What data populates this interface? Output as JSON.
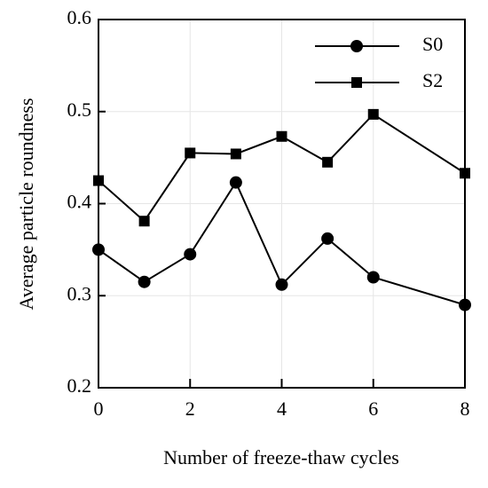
{
  "chart_data": {
    "type": "line",
    "x_label": "Number of freeze-thaw cycles",
    "y_label": "Average particle roundness",
    "x": [
      0,
      1,
      2,
      3,
      4,
      5,
      6,
      8
    ],
    "series": [
      {
        "name": "S0",
        "color": "#000000",
        "marker": "circle",
        "values": [
          0.35,
          0.315,
          0.345,
          0.423,
          0.312,
          0.362,
          0.32,
          0.29
        ]
      },
      {
        "name": "S2",
        "color": "#000000",
        "marker": "square",
        "values": [
          0.425,
          0.381,
          0.455,
          0.454,
          0.473,
          0.445,
          0.497,
          0.433
        ]
      }
    ],
    "xlim": [
      0,
      8
    ],
    "xticks": [
      0,
      2,
      4,
      6,
      8
    ],
    "ylim": [
      0.2,
      0.6
    ],
    "yticks": [
      0.2,
      0.3,
      0.4,
      0.5,
      0.6
    ],
    "grid": true,
    "legend": "upper right"
  }
}
